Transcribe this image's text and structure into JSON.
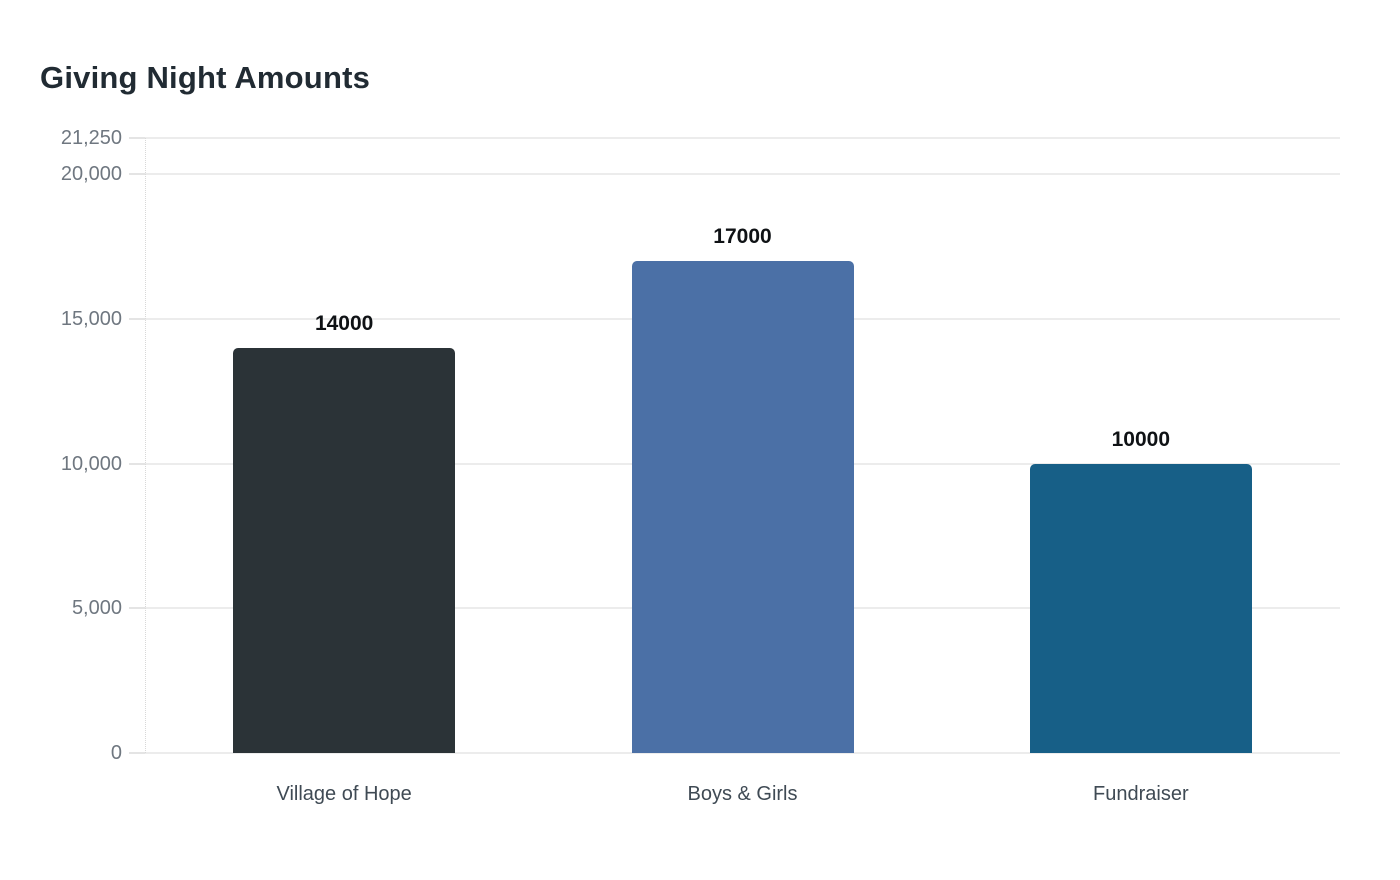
{
  "page": {
    "background_color": "#ffffff"
  },
  "chart_data": {
    "type": "bar",
    "title": "Giving Night Amounts",
    "xlabel": "",
    "ylabel": "",
    "categories": [
      "Village of Hope",
      "Boys & Girls",
      "Fundraiser"
    ],
    "values": [
      14000,
      17000,
      10000
    ],
    "bar_labels": [
      "14000",
      "17000",
      "10000"
    ],
    "bar_colors": [
      "#2b3337",
      "#4b70a6",
      "#175f87"
    ],
    "ylim": [
      0,
      21250
    ],
    "y_ticks": [
      {
        "value": 0,
        "label": "0"
      },
      {
        "value": 5000,
        "label": "5,000"
      },
      {
        "value": 10000,
        "label": "10,000"
      },
      {
        "value": 15000,
        "label": "15,000"
      },
      {
        "value": 20000,
        "label": "20,000"
      },
      {
        "value": 21250,
        "label": "21,250"
      }
    ],
    "grid": "horizontal",
    "legend_position": "none",
    "colors": {
      "title": "#212b33",
      "tick_label": "#6f7780",
      "category_label": "#3f4a54",
      "value_label": "#0f1215",
      "gridline": "#ececec",
      "axis_line": "#d8d8d8"
    }
  }
}
